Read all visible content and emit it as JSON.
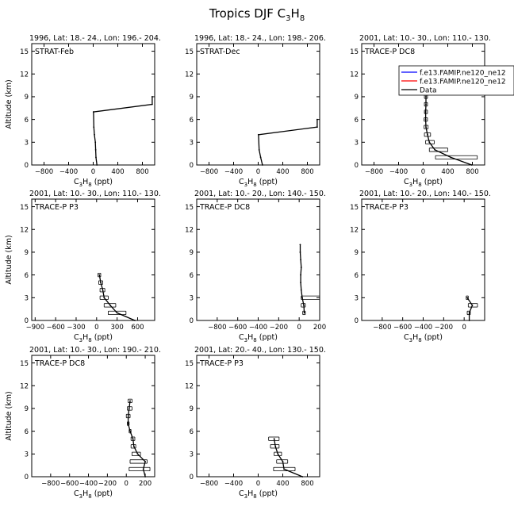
{
  "title_main": "Tropics DJF C",
  "title_sub": "3",
  "title_h": "H",
  "title_sub2": "8",
  "xlabel_main": "C",
  "xlabel_sub1": "3",
  "xlabel_h": "H",
  "xlabel_sub2": "8",
  "xlabel_unit": " (ppt)",
  "ylabel": "Altitude (km)",
  "legend": {
    "entries": [
      {
        "label": "f.e13.FAMIP.ne120_ne12",
        "color": "#0000ff"
      },
      {
        "label": "f.e13.FAMIP.ne120_ne12",
        "color": "#ff0000"
      },
      {
        "label": "Data",
        "color": "#000000"
      }
    ]
  },
  "chart_data": [
    {
      "type": "line",
      "header": "1996, Lat: 18.- 24., Lon: 196.- 204.",
      "campaign": "STRAT-Feb",
      "xlim": [
        -1000,
        1000
      ],
      "xticks": [
        -800,
        -400,
        0,
        400,
        800
      ],
      "ylim": [
        0,
        16
      ],
      "yticks": [
        0,
        3,
        6,
        9,
        12,
        15
      ],
      "series": [
        {
          "x": [
            60,
            45,
            40,
            35,
            20,
            10,
            5,
            960,
            960
          ],
          "y": [
            0,
            1,
            2,
            3,
            4,
            5,
            7,
            8,
            9
          ]
        }
      ],
      "errorbars": []
    },
    {
      "type": "line",
      "header": "1996, Lat: 18.- 24., Lon: 198.- 206.",
      "campaign": "STRAT-Dec",
      "xlim": [
        -1000,
        1000
      ],
      "xticks": [
        -800,
        -400,
        0,
        400,
        800
      ],
      "ylim": [
        0,
        16
      ],
      "yticks": [
        0,
        3,
        6,
        9,
        12,
        15
      ],
      "series": [
        {
          "x": [
            70,
            40,
            15,
            5,
            960,
            960
          ],
          "y": [
            0,
            1,
            2,
            4,
            5,
            6
          ]
        }
      ],
      "errorbars": []
    },
    {
      "type": "line",
      "header": "2001, Lat: 10.- 30., Lon: 110.- 130.",
      "campaign": "TRACE-P DC8",
      "xlim": [
        -1000,
        1000
      ],
      "xticks": [
        -800,
        -400,
        0,
        400,
        800
      ],
      "ylim": [
        0,
        16
      ],
      "yticks": [
        0,
        3,
        6,
        9,
        12,
        15
      ],
      "series": [
        {
          "x": [
            790,
            450,
            190,
            100,
            70,
            45,
            40,
            40,
            45,
            45,
            50
          ],
          "y": [
            0,
            1,
            2,
            3,
            4,
            5,
            6,
            7,
            8,
            9,
            10
          ]
        }
      ],
      "errorbars": [
        {
          "y": 1,
          "xmin": 200,
          "xmax": 880
        },
        {
          "y": 2,
          "xmin": 100,
          "xmax": 400
        },
        {
          "y": 3,
          "xmin": 40,
          "xmax": 180
        },
        {
          "y": 4,
          "xmin": 20,
          "xmax": 120
        },
        {
          "y": 5,
          "xmin": 15,
          "xmax": 80
        },
        {
          "y": 6,
          "xmin": 15,
          "xmax": 70
        },
        {
          "y": 7,
          "xmin": 20,
          "xmax": 70
        },
        {
          "y": 8,
          "xmin": 20,
          "xmax": 70
        },
        {
          "y": 9,
          "xmin": 20,
          "xmax": 70
        }
      ]
    },
    {
      "type": "line",
      "header": "2001, Lat: 10.- 30., Lon: 110.- 130.",
      "campaign": "TRACE-P P3",
      "xlim": [
        -950,
        850
      ],
      "xticks": [
        -900,
        -600,
        -300,
        0,
        300,
        600
      ],
      "ylim": [
        0,
        16
      ],
      "yticks": [
        0,
        3,
        6,
        9,
        12,
        15
      ],
      "series": [
        {
          "x": [
            560,
            300,
            200,
            110,
            90,
            60,
            40
          ],
          "y": [
            0,
            1,
            2,
            3,
            4,
            5,
            6
          ]
        }
      ],
      "errorbars": [
        {
          "y": 1,
          "xmin": 170,
          "xmax": 430
        },
        {
          "y": 2,
          "xmin": 110,
          "xmax": 280
        },
        {
          "y": 3,
          "xmin": 50,
          "xmax": 170
        },
        {
          "y": 4,
          "xmin": 50,
          "xmax": 120
        },
        {
          "y": 5,
          "xmin": 30,
          "xmax": 90
        },
        {
          "y": 6,
          "xmin": 20,
          "xmax": 60
        }
      ]
    },
    {
      "type": "line",
      "header": "2001, Lat: 10.- 20., Lon: 140.- 150.",
      "campaign": "TRACE-P DC8",
      "xlim": [
        -1000,
        200
      ],
      "xticks": [
        -800,
        -600,
        -400,
        -200,
        0,
        200
      ],
      "ylim": [
        0,
        16
      ],
      "yticks": [
        0,
        3,
        6,
        9,
        12,
        15
      ],
      "series": [
        {
          "x": [
            50,
            45,
            30,
            20,
            15,
            15,
            20,
            15,
            10,
            10
          ],
          "y": [
            1,
            2,
            3,
            4,
            5,
            6,
            7,
            8,
            9,
            10
          ]
        }
      ],
      "errorbars": [
        {
          "y": 1,
          "xmin": 35,
          "xmax": 60
        },
        {
          "y": 2,
          "xmin": 20,
          "xmax": 60
        },
        {
          "y": 3,
          "xmin": 20,
          "xmax": 200
        }
      ]
    },
    {
      "type": "line",
      "header": "2001, Lat: 10.- 20., Lon: 140.- 150.",
      "campaign": "TRACE-P P3",
      "xlim": [
        -1000,
        200
      ],
      "xticks": [
        -800,
        -600,
        -400,
        -200,
        0
      ],
      "ylim": [
        0,
        16
      ],
      "yticks": [
        0,
        3,
        6,
        9,
        12,
        15
      ],
      "series": [
        {
          "x": [
            50,
            50,
            80,
            30
          ],
          "y": [
            0,
            1,
            2,
            3
          ]
        }
      ],
      "errorbars": [
        {
          "y": 1,
          "xmin": 30,
          "xmax": 60
        },
        {
          "y": 2,
          "xmin": 40,
          "xmax": 130
        },
        {
          "y": 3,
          "xmin": 20,
          "xmax": 40
        }
      ]
    },
    {
      "type": "line",
      "header": "2001, Lat: 10.- 30., Lon: 190.- 210.",
      "campaign": "TRACE-P DC8",
      "xlim": [
        -1000,
        300
      ],
      "xticks": [
        -800,
        -600,
        -400,
        -200,
        0,
        200
      ],
      "ylim": [
        0,
        16
      ],
      "yticks": [
        0,
        3,
        6,
        9,
        12,
        15
      ],
      "series": [
        {
          "x": [
            200,
            180,
            200,
            120,
            80,
            70,
            40,
            20,
            20,
            30,
            40
          ],
          "y": [
            0,
            1,
            2,
            3,
            4,
            5,
            6,
            7,
            8,
            9,
            10
          ]
        }
      ],
      "errorbars": [
        {
          "y": 1,
          "xmin": 30,
          "xmax": 250
        },
        {
          "y": 2,
          "xmin": 40,
          "xmax": 220
        },
        {
          "y": 3,
          "xmin": 60,
          "xmax": 150
        },
        {
          "y": 4,
          "xmin": 50,
          "xmax": 100
        },
        {
          "y": 5,
          "xmin": 50,
          "xmax": 90
        },
        {
          "y": 6,
          "xmin": 30,
          "xmax": 50
        },
        {
          "y": 7,
          "xmin": 10,
          "xmax": 30
        },
        {
          "y": 8,
          "xmin": 0,
          "xmax": 40
        },
        {
          "y": 9,
          "xmin": 10,
          "xmax": 60
        },
        {
          "y": 10,
          "xmin": 20,
          "xmax": 60
        }
      ]
    },
    {
      "type": "line",
      "header": "2001, Lat: 20.- 40., Lon: 130.- 150.",
      "campaign": "TRACE-P P3",
      "xlim": [
        -1000,
        1000
      ],
      "xticks": [
        -800,
        -400,
        0,
        400,
        800
      ],
      "ylim": [
        0,
        16
      ],
      "yticks": [
        0,
        3,
        6,
        9,
        12,
        15
      ],
      "series": [
        {
          "x": [
            720,
            420,
            400,
            320,
            280,
            260
          ],
          "y": [
            0,
            1,
            2,
            3,
            4,
            5
          ]
        }
      ],
      "errorbars": [
        {
          "y": 1,
          "xmin": 250,
          "xmax": 600
        },
        {
          "y": 2,
          "xmin": 300,
          "xmax": 480
        },
        {
          "y": 3,
          "xmin": 260,
          "xmax": 380
        },
        {
          "y": 4,
          "xmin": 200,
          "xmax": 340
        },
        {
          "y": 5,
          "xmin": 170,
          "xmax": 340
        }
      ]
    }
  ]
}
